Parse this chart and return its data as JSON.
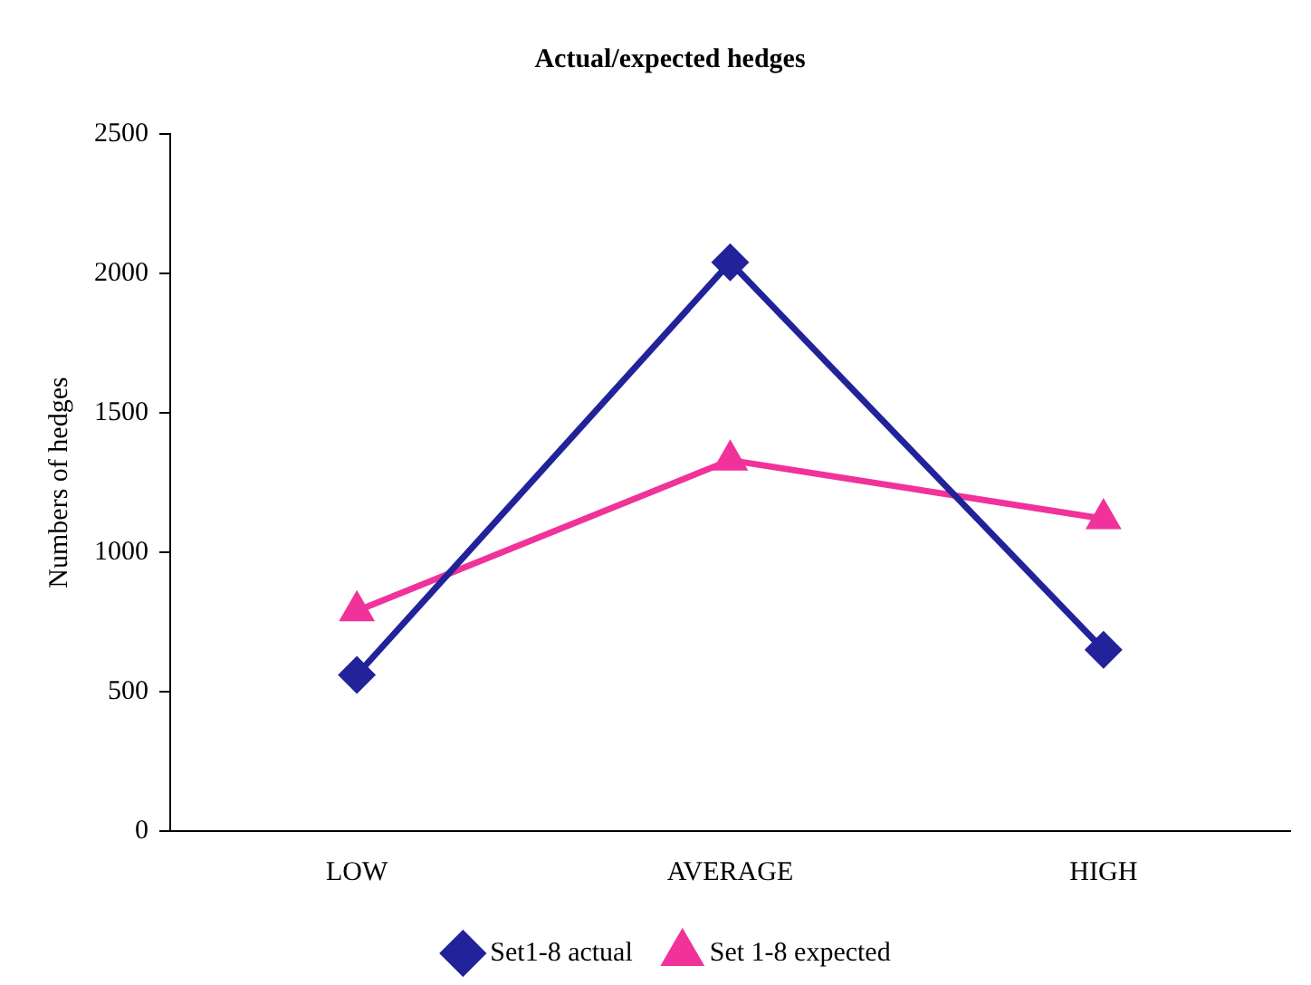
{
  "chart_data": {
    "type": "line",
    "title": "Actual/expected hedges",
    "ylabel": "Numbers of hedges",
    "categories": [
      "LOW",
      "AVERAGE",
      "HIGH"
    ],
    "series": [
      {
        "name": "Set1-8 actual",
        "color": "#22229a",
        "values": [
          560,
          2040,
          650
        ],
        "marker": "diamond"
      },
      {
        "name": "Set 1-8 expected",
        "color": "#f0329a",
        "values": [
          790,
          1330,
          1120
        ],
        "marker": "triangle"
      }
    ],
    "ylim": [
      0,
      2500
    ],
    "yticks": [
      0,
      500,
      1000,
      1500,
      2000,
      2500
    ],
    "grid": false,
    "legend": "bottom"
  }
}
